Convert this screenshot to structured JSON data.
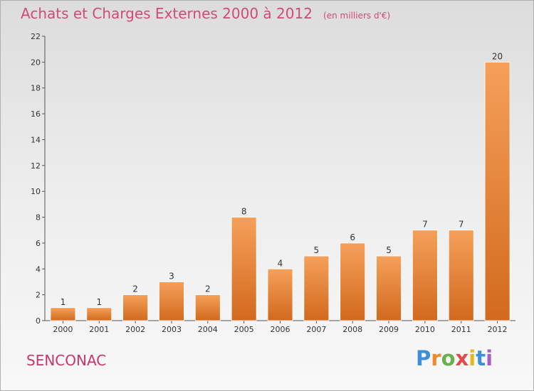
{
  "chart_data": {
    "type": "bar",
    "title": "Achats et Charges Externes 2000 à 2012",
    "subtitle": "(en milliers d'€)",
    "categories": [
      "2000",
      "2001",
      "2002",
      "2003",
      "2004",
      "2005",
      "2006",
      "2007",
      "2008",
      "2009",
      "2010",
      "2011",
      "2012"
    ],
    "values": [
      1,
      1,
      2,
      3,
      2,
      8,
      4,
      5,
      6,
      5,
      7,
      7,
      20
    ],
    "ylim": [
      0,
      22
    ],
    "yticks": [
      0,
      2,
      4,
      6,
      8,
      10,
      12,
      14,
      16,
      18,
      20,
      22
    ],
    "grid": false,
    "bar_color": "#e8822f"
  },
  "commune": "SENCONAC",
  "brand": {
    "letters": [
      "P",
      "r",
      "o",
      "x",
      "i",
      "t",
      "i"
    ],
    "colors": [
      "#3d8fd6",
      "#ec8a2c",
      "#6ab04c",
      "#e34a4a",
      "#e8b720",
      "#3d8fd6",
      "#a55fc2"
    ]
  }
}
